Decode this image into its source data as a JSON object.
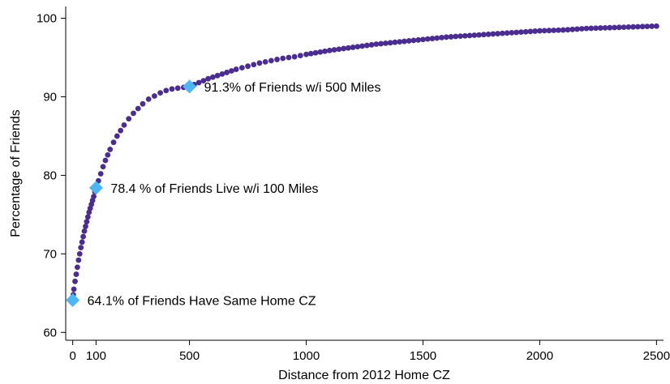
{
  "chart_data": {
    "type": "scatter",
    "xlabel": "Distance from 2012 Home CZ",
    "ylabel": "Percentage of Friends",
    "xlim": [
      -30,
      2530
    ],
    "ylim": [
      59,
      101.5
    ],
    "xticks": [
      0,
      100,
      500,
      1000,
      1500,
      2000,
      2500
    ],
    "yticks": [
      60,
      70,
      80,
      90,
      100
    ],
    "grid": false,
    "legend": "none",
    "colors": {
      "series": "#4b2c8f",
      "highlight": "#4fb6f5"
    },
    "series": [
      {
        "x": [
          0,
          5,
          10,
          15,
          20,
          25,
          30,
          35,
          40,
          45,
          50,
          55,
          60,
          65,
          70,
          75,
          80,
          85,
          90,
          95,
          100,
          110,
          120,
          130,
          140,
          150,
          160,
          175,
          190,
          205,
          220,
          240,
          260,
          280,
          300,
          325,
          350,
          375,
          400,
          425,
          450,
          475,
          500,
          540,
          580,
          620,
          660,
          700,
          750,
          800,
          850,
          900,
          950,
          1000,
          1100,
          1200,
          1300,
          1400,
          1500,
          1600,
          1700,
          1800,
          1900,
          2000,
          2100,
          2200,
          2300,
          2400,
          2500
        ],
        "y": [
          64.1,
          65.5,
          66.5,
          67.4,
          68.3,
          69.2,
          70.0,
          70.8,
          71.5,
          72.2,
          72.9,
          73.5,
          74.1,
          74.7,
          75.3,
          75.8,
          76.3,
          76.8,
          77.3,
          77.9,
          78.4,
          79.3,
          80.2,
          81.1,
          81.9,
          82.6,
          83.3,
          84.2,
          85.0,
          85.7,
          86.4,
          87.2,
          87.9,
          88.5,
          89.1,
          89.7,
          90.1,
          90.5,
          90.8,
          91.0,
          91.1,
          91.2,
          91.3,
          91.8,
          92.3,
          92.7,
          93.1,
          93.5,
          93.9,
          94.3,
          94.6,
          94.9,
          95.1,
          95.4,
          95.9,
          96.3,
          96.7,
          97.0,
          97.3,
          97.6,
          97.8,
          98.0,
          98.2,
          98.4,
          98.5,
          98.7,
          98.8,
          98.9,
          99.0
        ]
      }
    ],
    "highlights": [
      {
        "x": 0,
        "y": 64.1,
        "label": "64.1% of Friends Have Same Home CZ"
      },
      {
        "x": 100,
        "y": 78.4,
        "label": "78.4 % of Friends Live w/i 100 Miles"
      },
      {
        "x": 500,
        "y": 91.3,
        "label": "91.3% of Friends w/i 500 Miles"
      }
    ]
  }
}
